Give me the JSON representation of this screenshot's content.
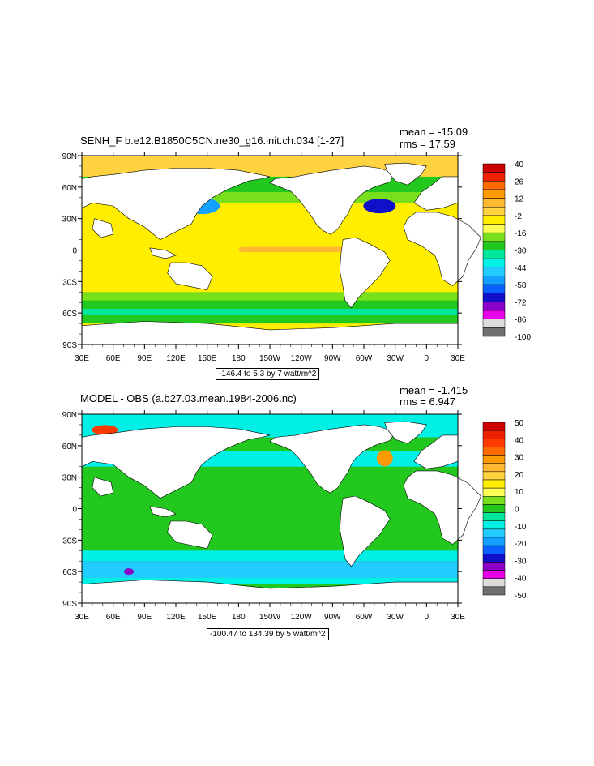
{
  "chart_data": [
    {
      "type": "heatmap",
      "title": "SENH_F b.e12.B1850C5CN.ne30_g16.init.ch.034 [1-27]",
      "mean_text": "mean = -15.09",
      "rms_text": "rms = 17.59",
      "range_text": "-146.4 to 5.3 by 7 watt/m^2",
      "x_ticks": [
        "30E",
        "60E",
        "90E",
        "120E",
        "150E",
        "180",
        "150W",
        "120W",
        "90W",
        "60W",
        "30W",
        "0",
        "30E"
      ],
      "y_ticks": [
        "90N",
        "60N",
        "30N",
        "0",
        "30S",
        "60S",
        "90S"
      ],
      "colorbar_labels": [
        "40",
        "26",
        "12",
        "-2",
        "-16",
        "-30",
        "-44",
        "-58",
        "-72",
        "-86",
        "-100"
      ],
      "colorbar_colors": [
        "#cc0000",
        "#ee2200",
        "#ff6a00",
        "#ff9a00",
        "#ffb830",
        "#ffd23f",
        "#ffee00",
        "#ffff55",
        "#78e01a",
        "#22c81e",
        "#00e69a",
        "#00f0e6",
        "#22ccff",
        "#14a0ff",
        "#0a60ff",
        "#1010c8",
        "#8a00c8",
        "#e600e6",
        "#dcdcdc",
        "#707070"
      ]
    },
    {
      "type": "heatmap",
      "title": "MODEL - OBS (a.b27.03.mean.1984-2006.nc)",
      "mean_text": "mean = -1.415",
      "rms_text": "rms = 6.947",
      "range_text": "-100.47 to 134.39 by 5 watt/m^2",
      "x_ticks": [
        "30E",
        "60E",
        "90E",
        "120E",
        "150E",
        "180",
        "150W",
        "120W",
        "90W",
        "60W",
        "30W",
        "0",
        "30E"
      ],
      "y_ticks": [
        "90N",
        "60N",
        "30N",
        "0",
        "30S",
        "60S",
        "90S"
      ],
      "colorbar_labels": [
        "50",
        "40",
        "30",
        "20",
        "10",
        "0",
        "-10",
        "-20",
        "-30",
        "-40",
        "-50"
      ],
      "colorbar_colors": [
        "#cc0000",
        "#ee2200",
        "#ff3a00",
        "#ff6a00",
        "#ff9a00",
        "#ffb830",
        "#ffd23f",
        "#ffee00",
        "#ffff55",
        "#78e01a",
        "#22c81e",
        "#00e69a",
        "#00f0e6",
        "#22ccff",
        "#14a0ff",
        "#0a60ff",
        "#1010c8",
        "#8a00c8",
        "#e600e6",
        "#dcdcdc",
        "#707070"
      ]
    }
  ]
}
